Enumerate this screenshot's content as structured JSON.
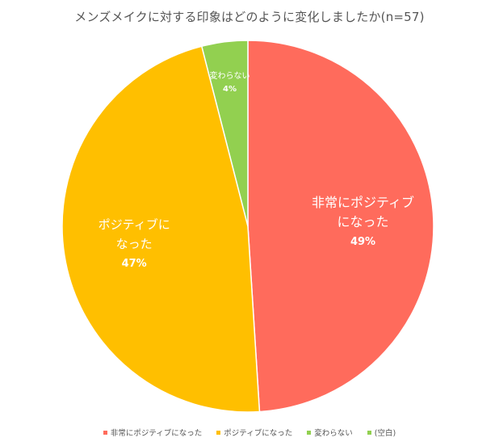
{
  "chart_data": {
    "type": "pie",
    "title": "メンズメイクに対する印象はどのように変化しましたか(n=57)",
    "categories": [
      "非常にポジティブになった",
      "ポジティブになった",
      "変わらない",
      "(空白)"
    ],
    "values": [
      49,
      47,
      4,
      0
    ],
    "data_labels": [
      {
        "lines": [
          "非常にポジティブ",
          "になった"
        ],
        "pct": "49%"
      },
      {
        "lines": [
          "ポジティブに",
          "なった"
        ],
        "pct": "47%"
      },
      {
        "lines": [
          "変わらない"
        ],
        "pct": "4%"
      },
      {
        "lines": [],
        "pct": ""
      }
    ],
    "colors": [
      "#FF6B5C",
      "#FFBF00",
      "#92D050",
      "#92D050"
    ],
    "legend_position": "bottom",
    "start_angle_deg": 0,
    "direction": "clockwise"
  }
}
